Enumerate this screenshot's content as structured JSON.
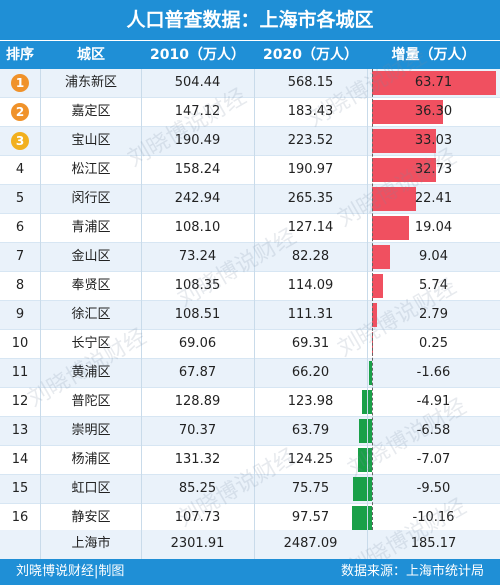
{
  "title": "人口普查数据：上海市各城区",
  "header": {
    "rank": "排序",
    "district": "城区",
    "y2010": "2010（万人）",
    "y2020": "2020（万人）",
    "increase": "增量（万人）"
  },
  "colors": {
    "header_bg": "#1f8fd6",
    "row_even": "#eaf2fa",
    "row_odd": "#ffffff",
    "positive_bar": "#f05060",
    "negative_bar": "#1aa048",
    "medal_gold": "#f0922a",
    "medal_silver": "#f0922a",
    "medal_bronze": "#f2b01e"
  },
  "chart_data": {
    "type": "table",
    "title": "人口普查数据：上海市各城区",
    "columns": [
      "排序",
      "城区",
      "2010（万人）",
      "2020（万人）",
      "增量（万人）"
    ],
    "rows": [
      {
        "rank": "1",
        "medal": true,
        "district": "浦东新区",
        "y2010": "504.44",
        "y2020": "568.15",
        "inc": "63.71",
        "inc_value": 63.71
      },
      {
        "rank": "2",
        "medal": true,
        "district": "嘉定区",
        "y2010": "147.12",
        "y2020": "183.43",
        "inc": "36.30",
        "inc_value": 36.3
      },
      {
        "rank": "3",
        "medal": true,
        "district": "宝山区",
        "y2010": "190.49",
        "y2020": "223.52",
        "inc": "33.03",
        "inc_value": 33.03
      },
      {
        "rank": "4",
        "medal": false,
        "district": "松江区",
        "y2010": "158.24",
        "y2020": "190.97",
        "inc": "32.73",
        "inc_value": 32.73
      },
      {
        "rank": "5",
        "medal": false,
        "district": "闵行区",
        "y2010": "242.94",
        "y2020": "265.35",
        "inc": "22.41",
        "inc_value": 22.41
      },
      {
        "rank": "6",
        "medal": false,
        "district": "青浦区",
        "y2010": "108.10",
        "y2020": "127.14",
        "inc": "19.04",
        "inc_value": 19.04
      },
      {
        "rank": "7",
        "medal": false,
        "district": "金山区",
        "y2010": "73.24",
        "y2020": "82.28",
        "inc": "9.04",
        "inc_value": 9.04
      },
      {
        "rank": "8",
        "medal": false,
        "district": "奉贤区",
        "y2010": "108.35",
        "y2020": "114.09",
        "inc": "5.74",
        "inc_value": 5.74
      },
      {
        "rank": "9",
        "medal": false,
        "district": "徐汇区",
        "y2010": "108.51",
        "y2020": "111.31",
        "inc": "2.79",
        "inc_value": 2.79
      },
      {
        "rank": "10",
        "medal": false,
        "district": "长宁区",
        "y2010": "69.06",
        "y2020": "69.31",
        "inc": "0.25",
        "inc_value": 0.25
      },
      {
        "rank": "11",
        "medal": false,
        "district": "黄浦区",
        "y2010": "67.87",
        "y2020": "66.20",
        "inc": "-1.66",
        "inc_value": -1.66
      },
      {
        "rank": "12",
        "medal": false,
        "district": "普陀区",
        "y2010": "128.89",
        "y2020": "123.98",
        "inc": "-4.91",
        "inc_value": -4.91
      },
      {
        "rank": "13",
        "medal": false,
        "district": "崇明区",
        "y2010": "70.37",
        "y2020": "63.79",
        "inc": "-6.58",
        "inc_value": -6.58
      },
      {
        "rank": "14",
        "medal": false,
        "district": "杨浦区",
        "y2010": "131.32",
        "y2020": "124.25",
        "inc": "-7.07",
        "inc_value": -7.07
      },
      {
        "rank": "15",
        "medal": false,
        "district": "虹口区",
        "y2010": "85.25",
        "y2020": "75.75",
        "inc": "-9.50",
        "inc_value": -9.5
      },
      {
        "rank": "16",
        "medal": false,
        "district": "静安区",
        "y2010": "107.73",
        "y2020": "97.57",
        "inc": "-10.16",
        "inc_value": -10.16
      }
    ],
    "total": {
      "district": "上海市",
      "y2010": "2301.91",
      "y2020": "2487.09",
      "inc": "185.17"
    }
  },
  "watermark": "刘晓博说财经",
  "footer": {
    "left": "刘晓博说财经|制图",
    "right": "数据来源：上海市统计局"
  }
}
